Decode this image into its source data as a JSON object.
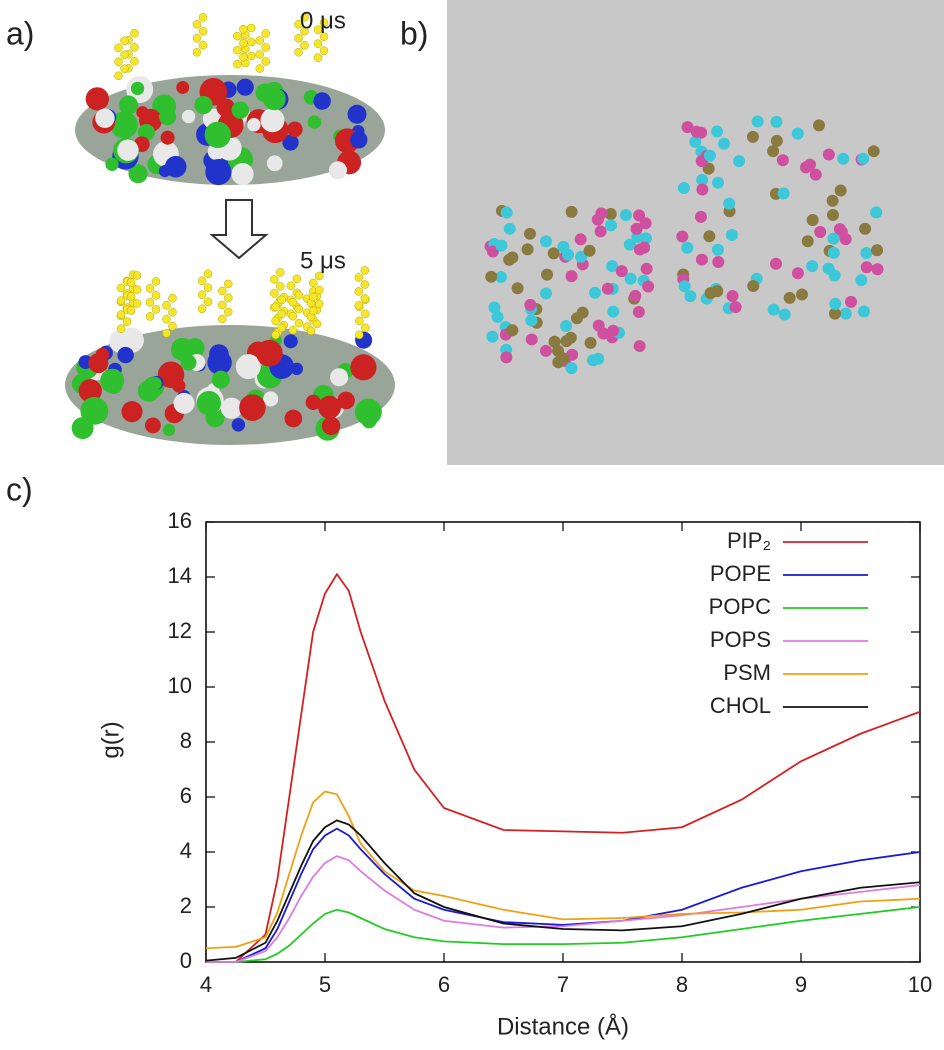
{
  "panels": {
    "a": {
      "label": "a)",
      "annotations": [
        "0 μs",
        "5 μs"
      ]
    },
    "b": {
      "label": "b)"
    },
    "c": {
      "label": "c)"
    }
  },
  "chart_data": {
    "type": "line",
    "xlabel": "Distance (Å)",
    "ylabel": "g(r)",
    "x": [
      4,
      4.25,
      4.5,
      4.6,
      4.7,
      4.8,
      4.9,
      5,
      5.1,
      5.2,
      5.3,
      5.5,
      5.75,
      6,
      6.5,
      7,
      7.5,
      8,
      8.5,
      9,
      9.5,
      10
    ],
    "series": [
      {
        "name": "PIP₂",
        "color": "#d62020",
        "values": [
          0,
          0,
          1,
          3,
          6,
          9,
          12,
          13.4,
          14.1,
          13.5,
          12,
          9.5,
          7,
          5.6,
          4.8,
          4.75,
          4.7,
          4.9,
          5.9,
          7.3,
          8.3,
          9.1
        ]
      },
      {
        "name": "POPE",
        "color": "#1a1ad6",
        "values": [
          0,
          0,
          0.5,
          1.2,
          2.2,
          3.2,
          4.1,
          4.6,
          4.85,
          4.6,
          4.1,
          3.2,
          2.3,
          1.9,
          1.45,
          1.35,
          1.5,
          1.9,
          2.7,
          3.3,
          3.7,
          4.0
        ]
      },
      {
        "name": "POPC",
        "color": "#22cc22",
        "values": [
          0,
          0,
          0.1,
          0.3,
          0.6,
          1.0,
          1.4,
          1.75,
          1.9,
          1.8,
          1.6,
          1.2,
          0.9,
          0.75,
          0.65,
          0.65,
          0.7,
          0.9,
          1.2,
          1.5,
          1.75,
          2.0
        ]
      },
      {
        "name": "POPS",
        "color": "#e07ae0",
        "values": [
          0,
          0,
          0.4,
          0.9,
          1.6,
          2.4,
          3.1,
          3.6,
          3.85,
          3.7,
          3.3,
          2.6,
          1.9,
          1.5,
          1.25,
          1.3,
          1.5,
          1.7,
          2.0,
          2.3,
          2.55,
          2.8
        ]
      },
      {
        "name": "PSM",
        "color": "#f0a010",
        "values": [
          0.5,
          0.55,
          0.9,
          1.8,
          3.2,
          4.6,
          5.8,
          6.2,
          6.1,
          5.3,
          4.3,
          3.3,
          2.6,
          2.4,
          1.9,
          1.55,
          1.6,
          1.75,
          1.8,
          1.9,
          2.2,
          2.3
        ]
      },
      {
        "name": "CHOL",
        "color": "#111111",
        "values": [
          0.05,
          0.15,
          0.7,
          1.5,
          2.5,
          3.5,
          4.4,
          4.9,
          5.15,
          5.0,
          4.6,
          3.6,
          2.5,
          2.0,
          1.4,
          1.2,
          1.15,
          1.3,
          1.75,
          2.3,
          2.7,
          2.9
        ]
      }
    ],
    "xlim": [
      4,
      10
    ],
    "xticks": [
      4,
      5,
      6,
      7,
      8,
      9,
      10
    ],
    "ylim": [
      0,
      16
    ],
    "yticks": [
      0,
      2,
      4,
      6,
      8,
      10,
      12,
      14,
      16
    ],
    "legend": "upper-right",
    "grid": false
  }
}
